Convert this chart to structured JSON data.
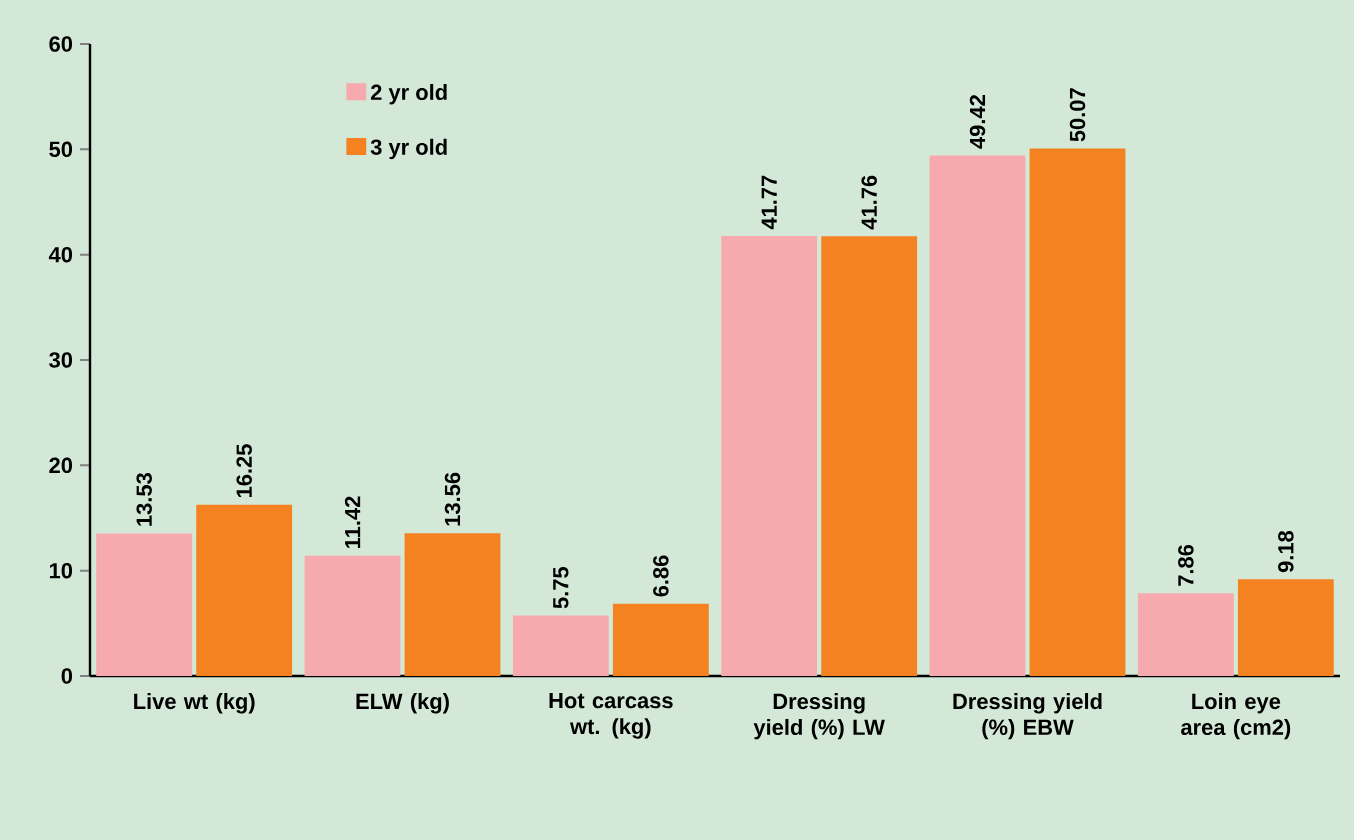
{
  "chart_data": {
    "type": "bar",
    "categories": [
      "Live wt (kg)",
      "ELW (kg)",
      "Hot carcass wt. (kg)",
      "Dressing yield (%) LW",
      "Dressing yield (%) EBW",
      "Loin eye area (cm2)"
    ],
    "series": [
      {
        "name": "2 yr old",
        "color": "#f7aaad",
        "values": [
          13.53,
          11.42,
          5.75,
          41.77,
          49.42,
          7.86
        ]
      },
      {
        "name": "3 yr old",
        "color": "#f58220",
        "values": [
          16.25,
          13.56,
          6.86,
          41.76,
          50.07,
          9.18
        ]
      }
    ],
    "ylim": [
      0,
      60
    ],
    "yticks": [
      0,
      10,
      20,
      30,
      40,
      50,
      60
    ],
    "grid": false,
    "legend": "top left",
    "data_labels": true
  }
}
